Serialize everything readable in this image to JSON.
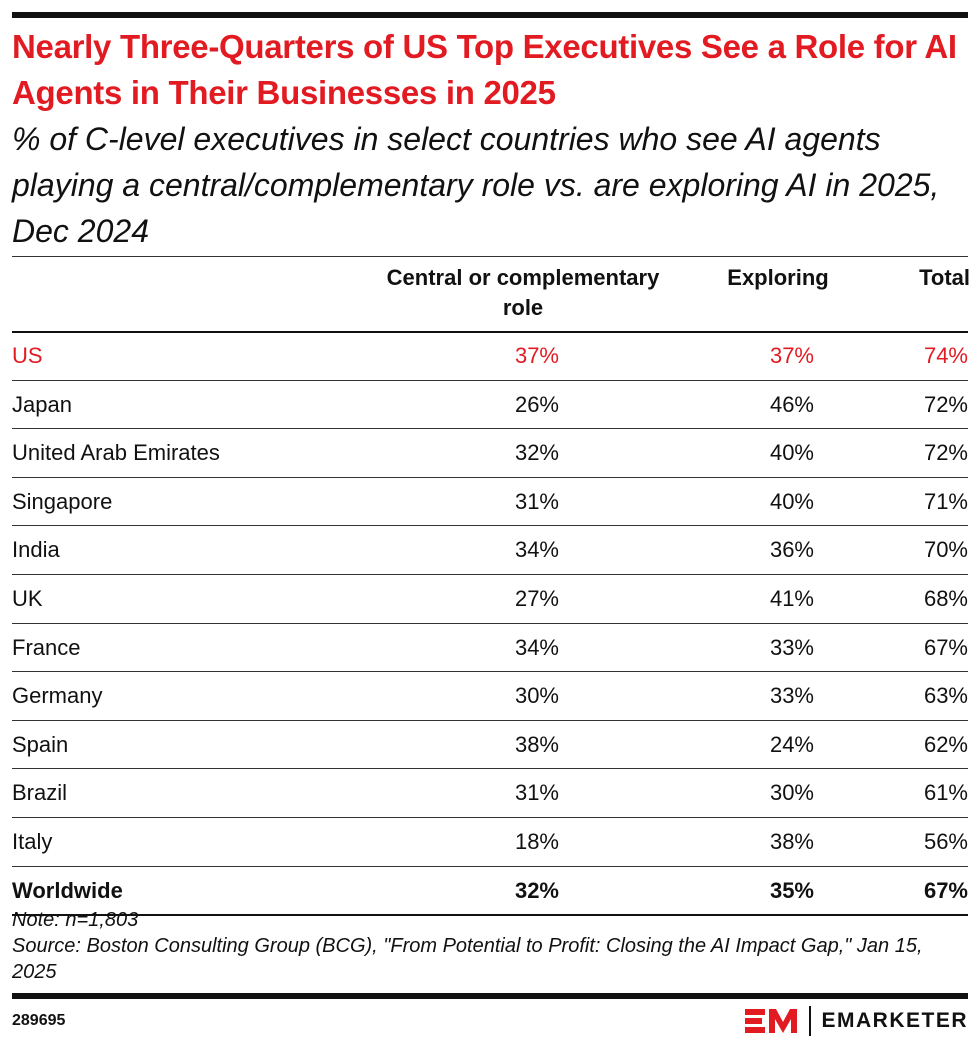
{
  "title": "Nearly Three-Quarters of US Top Executives See a Role for AI Agents in Their Businesses in 2025",
  "subtitle": "% of C-level executives in select countries who see AI agents playing a central/complementary role vs. are exploring AI in 2025, Dec 2024",
  "colors": {
    "accent": "#e21b23",
    "text": "#111111"
  },
  "chart_data": {
    "type": "table",
    "columns": [
      "",
      "Central or complementary role",
      "Exploring",
      "Total"
    ],
    "rows": [
      {
        "label": "US",
        "values": [
          "37%",
          "37%",
          "74%"
        ],
        "highlight": true
      },
      {
        "label": "Japan",
        "values": [
          "26%",
          "46%",
          "72%"
        ]
      },
      {
        "label": "United Arab Emirates",
        "values": [
          "32%",
          "40%",
          "72%"
        ]
      },
      {
        "label": "Singapore",
        "values": [
          "31%",
          "40%",
          "71%"
        ]
      },
      {
        "label": "India",
        "values": [
          "34%",
          "36%",
          "70%"
        ]
      },
      {
        "label": "UK",
        "values": [
          "27%",
          "41%",
          "68%"
        ]
      },
      {
        "label": "France",
        "values": [
          "34%",
          "33%",
          "67%"
        ]
      },
      {
        "label": "Germany",
        "values": [
          "30%",
          "33%",
          "63%"
        ]
      },
      {
        "label": "Spain",
        "values": [
          "38%",
          "24%",
          "62%"
        ]
      },
      {
        "label": "Brazil",
        "values": [
          "31%",
          "30%",
          "61%"
        ]
      },
      {
        "label": "Italy",
        "values": [
          "18%",
          "38%",
          "56%"
        ]
      },
      {
        "label": "Worldwide",
        "values": [
          "32%",
          "35%",
          "67%"
        ],
        "bold": true
      }
    ]
  },
  "note": "Note: n=1,803",
  "source": "Source: Boston Consulting Group (BCG), \"From Potential to Profit: Closing the AI Impact Gap,\" Jan 15, 2025",
  "chart_id": "289695",
  "brand": "EMARKETER"
}
